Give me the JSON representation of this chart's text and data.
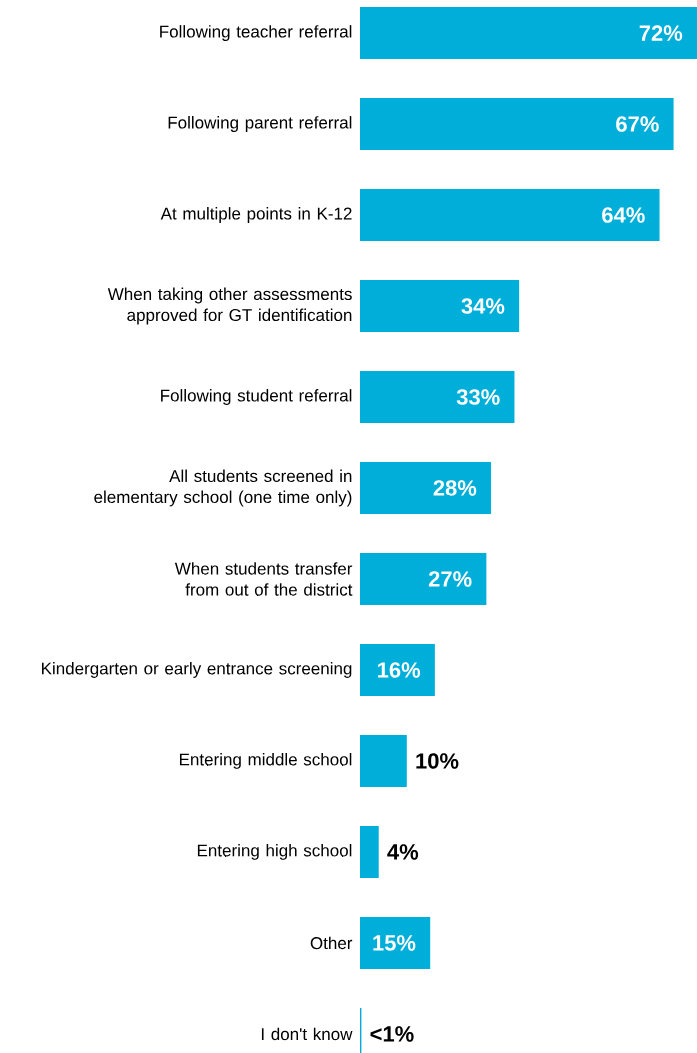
{
  "chart_data": {
    "type": "bar",
    "orientation": "horizontal",
    "categories": [
      "Following teacher referral",
      "Following parent referral",
      "At multiple points in K-12",
      "When taking other assessments approved for GT identification",
      "Following student referral",
      "All students screened in elementary school (one time only)",
      "When students transfer from out of the district",
      "Kindergarten or early entrance screening",
      "Entering middle school",
      "Entering high school",
      "Other",
      "I don't know"
    ],
    "values": [
      72,
      67,
      64,
      34,
      33,
      28,
      27,
      16,
      10,
      4,
      15,
      0.3
    ],
    "value_labels": [
      "72%",
      "67%",
      "64%",
      "34%",
      "33%",
      "28%",
      "27%",
      "16%",
      "10%",
      "4%",
      "15%",
      "<1%"
    ],
    "color": "#00aeda"
  }
}
